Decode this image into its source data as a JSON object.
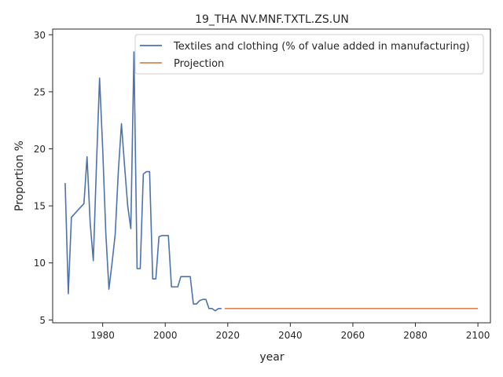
{
  "chart_data": {
    "type": "line",
    "title": "19_THA NV.MNF.TXTL.ZS.UN",
    "xlabel": "year",
    "ylabel": "Proportion %",
    "xlim": [
      1964,
      2104
    ],
    "ylim": [
      4.75,
      30.5
    ],
    "xticks": [
      1980,
      2000,
      2020,
      2040,
      2060,
      2080,
      2100
    ],
    "yticks": [
      5,
      10,
      15,
      20,
      25,
      30
    ],
    "grid": false,
    "legend_position": "top-right",
    "series": [
      {
        "name": "Textiles and clothing (% of value added in manufacturing)",
        "color": "#4c72b0",
        "x": [
          1968,
          1969,
          1970,
          1974,
          1975,
          1976,
          1977,
          1978,
          1979,
          1980,
          1981,
          1982,
          1983,
          1984,
          1985,
          1986,
          1987,
          1988,
          1989,
          1990,
          1991,
          1992,
          1993,
          1994,
          1995,
          1996,
          1997,
          1998,
          1999,
          2000,
          2001,
          2002,
          2003,
          2004,
          2005,
          2006,
          2007,
          2008,
          2009,
          2010,
          2011,
          2012,
          2013,
          2014,
          2015,
          2016,
          2017,
          2018
        ],
        "y": [
          17.0,
          7.3,
          14.0,
          15.2,
          19.3,
          13.5,
          10.2,
          18.5,
          26.2,
          20.0,
          12.6,
          7.7,
          10.0,
          12.5,
          18.0,
          22.2,
          18.5,
          15.0,
          13.0,
          28.5,
          9.5,
          9.5,
          17.8,
          18.0,
          18.0,
          8.6,
          8.6,
          12.3,
          12.4,
          12.4,
          12.4,
          7.9,
          7.9,
          7.9,
          8.8,
          8.8,
          8.8,
          8.8,
          6.4,
          6.4,
          6.7,
          6.8,
          6.8,
          6.0,
          6.0,
          5.8,
          6.0,
          6.0
        ]
      },
      {
        "name": "Projection",
        "color": "#dd8452",
        "x": [
          2019,
          2100
        ],
        "y": [
          6.0,
          6.0
        ]
      }
    ]
  }
}
